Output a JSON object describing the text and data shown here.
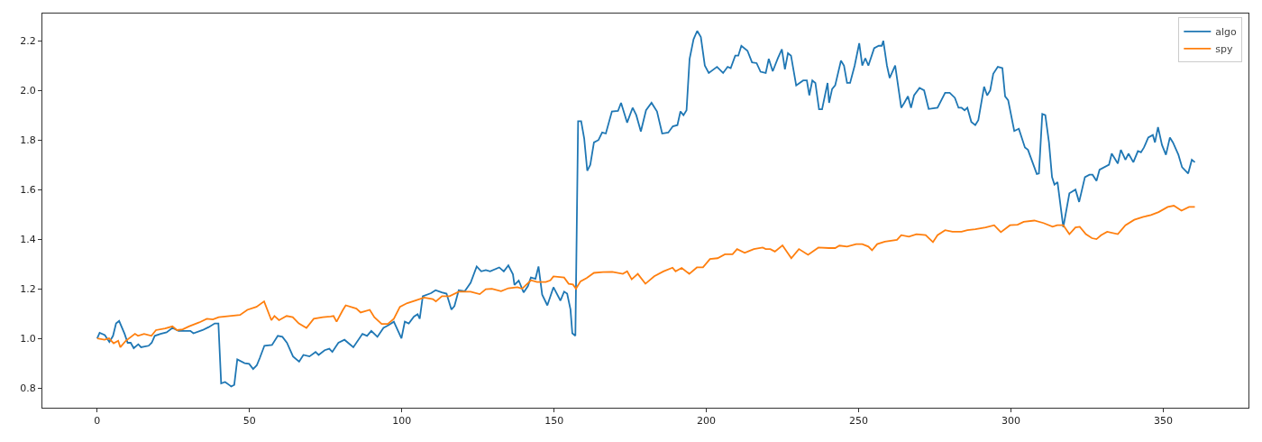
{
  "chart_data": {
    "type": "line",
    "xlim": [
      -18,
      378
    ],
    "ylim": [
      0.72,
      2.31
    ],
    "xticks": [
      0,
      50,
      100,
      150,
      200,
      250,
      300,
      350
    ],
    "yticks": [
      {
        "value": 0.8,
        "label": "0.8"
      },
      {
        "value": 1,
        "label": "1.0"
      },
      {
        "value": 1.2,
        "label": "1.2"
      },
      {
        "value": 1.4,
        "label": "1.4"
      },
      {
        "value": 1.6,
        "label": "1.6"
      },
      {
        "value": 1.8,
        "label": "1.8"
      },
      {
        "value": 2,
        "label": "2.0"
      },
      {
        "value": 2.2,
        "label": "2.2"
      }
    ],
    "grid": false,
    "legend": "top right",
    "line_style": "solid",
    "marker": "none",
    "series": [
      {
        "name": "algo",
        "color": "#1f77b4",
        "x": [
          0,
          0.8,
          2.5,
          4,
          5.2,
          6.2,
          7.2,
          9,
          10,
          11,
          12,
          13.5,
          14.4,
          16.9,
          17.9,
          18.9,
          20.8,
          22.8,
          24.7,
          26.7,
          30.6,
          31.6,
          34.6,
          36.6,
          38.6,
          39.8,
          40.7,
          42,
          44,
          45,
          46,
          48.4,
          49.9,
          51.2,
          52.4,
          53.4,
          54.9,
          57.4,
          59.3,
          60.8,
          62.3,
          64.3,
          66.3,
          67.7,
          69.7,
          71.7,
          72.7,
          74.7,
          76.2,
          77.2,
          78.2,
          79.2,
          81.2,
          84.1,
          87.1,
          88.6,
          90,
          92,
          94,
          95.5,
          97.4,
          99.9,
          101,
          102.3,
          104,
          105.2,
          105.9,
          106.9,
          109.6,
          111.1,
          113.1,
          114.7,
          116.3,
          117.3,
          118.7,
          120.7,
          122.6,
          124.6,
          126.1,
          127.6,
          129,
          132,
          133.5,
          135,
          136.5,
          137,
          138.4,
          140,
          141.4,
          142.4,
          143.9,
          144.9,
          146.1,
          147.8,
          149.8,
          152.1,
          153.3,
          154.3,
          155.4,
          156,
          157,
          157.9,
          158.9,
          159.9,
          160.9,
          161.9,
          163.1,
          164.6,
          165.8,
          167,
          169,
          171,
          172,
          174,
          175.8,
          177,
          178.5,
          180.2,
          182,
          183.8,
          185.5,
          187.5,
          189,
          190.5,
          191.5,
          192.5,
          193.5,
          194.5,
          195.8,
          197,
          198.2,
          199.5,
          200.8,
          203.5,
          205.5,
          207,
          208,
          209.5,
          210.5,
          211.5,
          213.5,
          215,
          216.5,
          217.8,
          219.5,
          220.5,
          221.8,
          223.5,
          224.8,
          225.8,
          226.8,
          227.8,
          229.5,
          231.8,
          233,
          233.8,
          234.8,
          235.8,
          237,
          238,
          239.8,
          240.3,
          241.3,
          242.3,
          244.2,
          245.2,
          246.2,
          247.2,
          248.7,
          250.2,
          251.2,
          252.2,
          253.2,
          255.1,
          256.6,
          257.6,
          258.1,
          259.3,
          260.2,
          262,
          264,
          265,
          266.2,
          267.2,
          268.2,
          270,
          271.5,
          273,
          275.9,
          278.4,
          279.9,
          281.6,
          282.8,
          283.8,
          284.8,
          285.7,
          287,
          288.3,
          289.3,
          291.2,
          292.2,
          293.2,
          294.2,
          295.7,
          297.2,
          298.1,
          299.1,
          301.1,
          302.6,
          304.6,
          305.6,
          308.5,
          309.2,
          310.3,
          311.3,
          312.5,
          313.5,
          314.3,
          315.3,
          317.2,
          319.2,
          321.2,
          322.4,
          324.3,
          325.8,
          326.8,
          328.1,
          329.1,
          332.2,
          333.1,
          335.1,
          336.1,
          337.6,
          338.6,
          340.2,
          341.7,
          342.7,
          343.7,
          345.1,
          346.6,
          347.3,
          348.3,
          349.6,
          350.9,
          352.2,
          353.2,
          355,
          356.2,
          358.2,
          359.4,
          360.4
        ],
        "values": [
          1,
          1.022,
          1.013,
          0.985,
          1.01,
          1.06,
          1.07,
          1.018,
          0.982,
          0.982,
          0.96,
          0.976,
          0.964,
          0.97,
          0.982,
          1.01,
          1.018,
          1.024,
          1.042,
          1.03,
          1.03,
          1.02,
          1.033,
          1.045,
          1.06,
          1.06,
          0.818,
          0.824,
          0.806,
          0.812,
          0.915,
          0.9,
          0.897,
          0.876,
          0.891,
          0.921,
          0.97,
          0.973,
          1.01,
          1.006,
          0.982,
          0.927,
          0.906,
          0.933,
          0.927,
          0.945,
          0.933,
          0.952,
          0.958,
          0.945,
          0.964,
          0.982,
          0.994,
          0.964,
          1.018,
          1.01,
          1.03,
          1.006,
          1.042,
          1.052,
          1.067,
          1,
          1.067,
          1.06,
          1.088,
          1.097,
          1.079,
          1.17,
          1.182,
          1.194,
          1.185,
          1.18,
          1.116,
          1.13,
          1.194,
          1.19,
          1.224,
          1.29,
          1.27,
          1.275,
          1.27,
          1.286,
          1.27,
          1.294,
          1.258,
          1.215,
          1.233,
          1.185,
          1.21,
          1.245,
          1.24,
          1.29,
          1.176,
          1.133,
          1.206,
          1.152,
          1.188,
          1.18,
          1.116,
          1.02,
          1.01,
          1.876,
          1.876,
          1.806,
          1.676,
          1.7,
          1.79,
          1.8,
          1.83,
          1.826,
          1.915,
          1.917,
          1.95,
          1.87,
          1.93,
          1.9,
          1.834,
          1.92,
          1.95,
          1.915,
          1.826,
          1.83,
          1.855,
          1.86,
          1.915,
          1.9,
          1.92,
          2.127,
          2.206,
          2.24,
          2.215,
          2.1,
          2.07,
          2.095,
          2.07,
          2.095,
          2.09,
          2.14,
          2.14,
          2.18,
          2.16,
          2.113,
          2.11,
          2.075,
          2.07,
          2.127,
          2.077,
          2.13,
          2.166,
          2.085,
          2.15,
          2.14,
          2.02,
          2.04,
          2.04,
          1.98,
          2.04,
          2.03,
          1.924,
          1.924,
          2.03,
          1.95,
          2.006,
          2.02,
          2.12,
          2.1,
          2.03,
          2.03,
          2.1,
          2.19,
          2.1,
          2.13,
          2.1,
          2.17,
          2.18,
          2.18,
          2.2,
          2.1,
          2.05,
          2.1,
          1.93,
          1.95,
          1.976,
          1.93,
          1.98,
          2.01,
          2,
          1.925,
          1.93,
          1.99,
          1.99,
          1.97,
          1.93,
          1.93,
          1.92,
          1.93,
          1.873,
          1.86,
          1.88,
          2.015,
          1.98,
          2,
          2.067,
          2.095,
          2.09,
          1.976,
          1.96,
          1.836,
          1.845,
          1.77,
          1.76,
          1.663,
          1.665,
          1.905,
          1.9,
          1.79,
          1.65,
          1.62,
          1.63,
          1.448,
          1.585,
          1.6,
          1.55,
          1.65,
          1.66,
          1.66,
          1.635,
          1.68,
          1.7,
          1.745,
          1.705,
          1.76,
          1.72,
          1.745,
          1.71,
          1.755,
          1.75,
          1.77,
          1.81,
          1.82,
          1.79,
          1.852,
          1.78,
          1.74,
          1.81,
          1.79,
          1.74,
          1.69,
          1.665,
          1.72,
          1.71
        ]
      },
      {
        "name": "spy",
        "color": "#ff7f0e",
        "x": [
          0,
          2.4,
          3.9,
          5.4,
          6.9,
          7.6,
          9.4,
          12.4,
          13.4,
          15.4,
          17.8,
          19.3,
          22.3,
          24.7,
          26.2,
          28.1,
          30.1,
          33.5,
          36,
          38,
          39.9,
          43.4,
          46.9,
          49.3,
          52.3,
          54.8,
          57.2,
          58.2,
          59.7,
          62.2,
          64.2,
          66.2,
          68.7,
          71.1,
          74.1,
          76.6,
          77.6,
          78.6,
          80.6,
          81.6,
          85.1,
          86.5,
          89.5,
          91,
          93.4,
          95.4,
          97.4,
          99.4,
          101.8,
          104.3,
          107.3,
          110.2,
          111.2,
          113.2,
          115.7,
          118.7,
          122.6,
          125.6,
          127.6,
          129.6,
          132.6,
          135,
          138,
          139.5,
          142.4,
          144.4,
          147.3,
          148.8,
          149.8,
          153.3,
          154.8,
          156.2,
          157.2,
          158.7,
          160.7,
          163.1,
          166.1,
          169.1,
          172.6,
          174,
          175.5,
          177.5,
          180,
          182.9,
          185.9,
          188.9,
          189.9,
          191.9,
          194.4,
          196.9,
          198.9,
          201.2,
          203.7,
          206.1,
          208.6,
          210.1,
          212.6,
          213.6,
          215.6,
          218.5,
          219.5,
          221,
          222.5,
          225,
          227.9,
          230.4,
          233.4,
          236.8,
          240.3,
          242.3,
          243.7,
          246.2,
          249.2,
          251.2,
          253.2,
          254.4,
          256.1,
          258.6,
          262.6,
          264,
          266.5,
          269,
          272,
          274.4,
          275.9,
          278.4,
          280.8,
          283.8,
          285.7,
          288.3,
          291.7,
          294.5,
          296.7,
          299.7,
          302.2,
          304.2,
          307.7,
          310.7,
          313.7,
          315.2,
          317.2,
          319.2,
          321.2,
          322.6,
          324.6,
          326.6,
          328.1,
          329.6,
          331.6,
          335.1,
          337.6,
          340.5,
          343.5,
          346,
          348.5,
          351.5,
          353.5,
          356,
          358.5,
          360.4
        ],
        "values": [
          1,
          0.994,
          1,
          0.98,
          0.99,
          0.964,
          0.99,
          1.018,
          1.01,
          1.018,
          1.01,
          1.033,
          1.04,
          1.048,
          1.033,
          1.036,
          1.048,
          1.064,
          1.079,
          1.076,
          1.085,
          1.09,
          1.094,
          1.115,
          1.127,
          1.149,
          1.073,
          1.09,
          1.073,
          1.09,
          1.085,
          1.06,
          1.042,
          1.079,
          1.085,
          1.088,
          1.09,
          1.067,
          1.113,
          1.133,
          1.12,
          1.104,
          1.115,
          1.085,
          1.058,
          1.058,
          1.079,
          1.127,
          1.142,
          1.152,
          1.164,
          1.158,
          1.149,
          1.17,
          1.17,
          1.188,
          1.188,
          1.178,
          1.198,
          1.2,
          1.19,
          1.202,
          1.206,
          1.2,
          1.234,
          1.227,
          1.227,
          1.234,
          1.25,
          1.245,
          1.22,
          1.217,
          1.2,
          1.23,
          1.243,
          1.264,
          1.267,
          1.268,
          1.26,
          1.27,
          1.238,
          1.26,
          1.22,
          1.25,
          1.27,
          1.285,
          1.27,
          1.284,
          1.26,
          1.286,
          1.286,
          1.32,
          1.323,
          1.339,
          1.339,
          1.36,
          1.345,
          1.35,
          1.36,
          1.366,
          1.36,
          1.36,
          1.35,
          1.375,
          1.323,
          1.36,
          1.337,
          1.366,
          1.364,
          1.364,
          1.374,
          1.37,
          1.38,
          1.38,
          1.37,
          1.355,
          1.38,
          1.39,
          1.397,
          1.416,
          1.41,
          1.42,
          1.416,
          1.388,
          1.416,
          1.436,
          1.43,
          1.43,
          1.436,
          1.44,
          1.447,
          1.456,
          1.428,
          1.456,
          1.458,
          1.47,
          1.475,
          1.465,
          1.45,
          1.456,
          1.456,
          1.42,
          1.447,
          1.45,
          1.42,
          1.404,
          1.4,
          1.416,
          1.43,
          1.42,
          1.456,
          1.478,
          1.49,
          1.497,
          1.509,
          1.53,
          1.535,
          1.515,
          1.53,
          1.53
        ]
      }
    ]
  }
}
